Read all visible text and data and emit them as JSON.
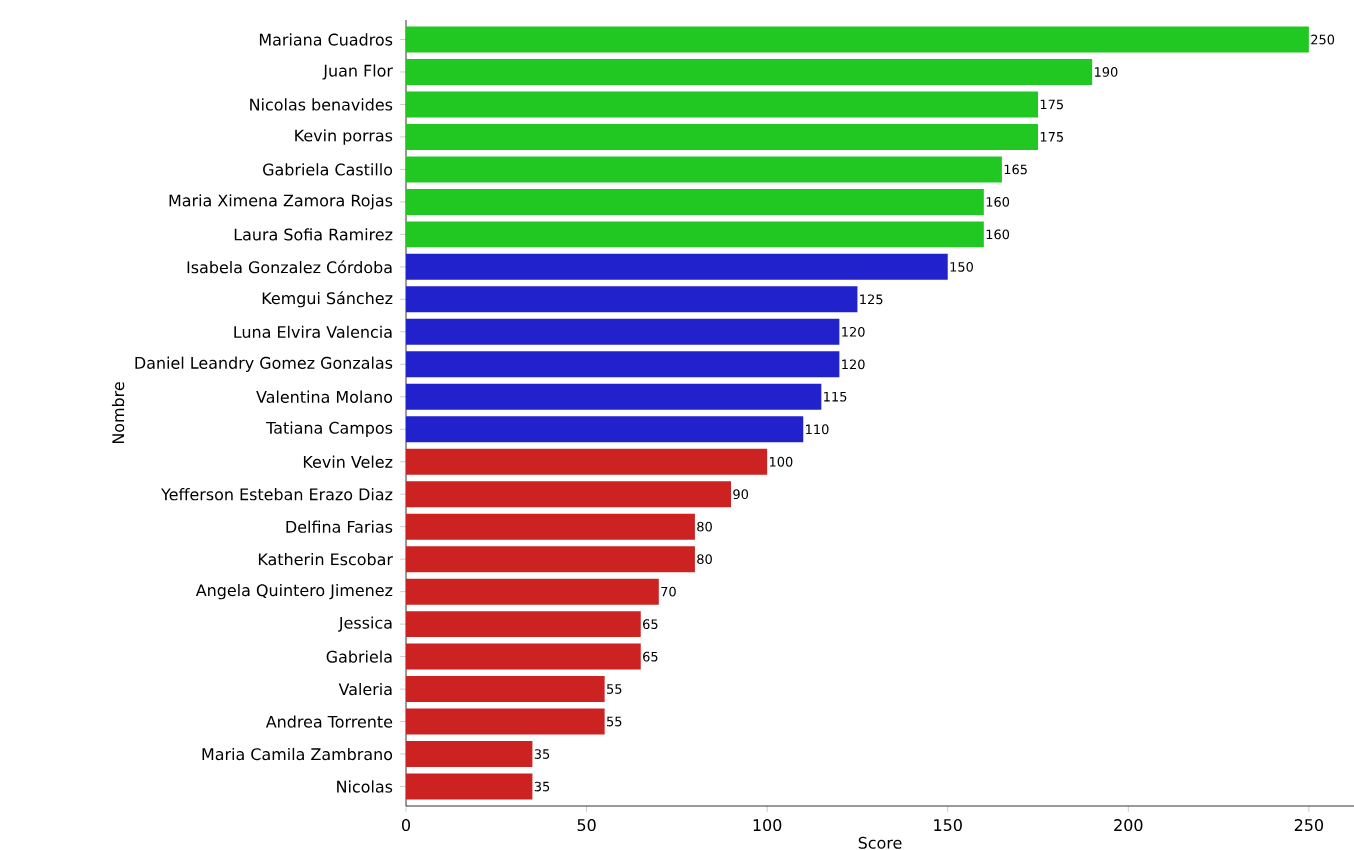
{
  "chart_data": {
    "type": "bar",
    "orientation": "horizontal",
    "xlabel": "Score",
    "ylabel": "Nombre",
    "categories": [
      "Mariana Cuadros",
      "Juan Flor",
      "Nicolas benavides",
      "Kevin porras",
      "Gabriela Castillo",
      "Maria Ximena Zamora Rojas",
      "Laura Sofia Ramirez",
      "Isabela Gonzalez Córdoba",
      "Kemgui Sánchez",
      "Luna Elvira Valencia",
      "Daniel Leandry Gomez Gonzalas",
      "Valentina Molano",
      "Tatiana Campos",
      "Kevin Velez",
      "Yefferson Esteban Erazo Diaz",
      "Delfina Farias",
      "Katherin Escobar",
      "Angela Quintero Jimenez",
      "Jessica",
      "Gabriela",
      "Valeria",
      "Andrea Torrente",
      "Maria Camila Zambrano",
      "Nicolas"
    ],
    "values": [
      250,
      190,
      175,
      175,
      165,
      160,
      160,
      150,
      125,
      120,
      120,
      115,
      110,
      100,
      90,
      80,
      80,
      70,
      65,
      65,
      55,
      55,
      35,
      35
    ],
    "colors": [
      "#22c822",
      "#22c822",
      "#22c822",
      "#22c822",
      "#22c822",
      "#22c822",
      "#22c822",
      "#2222cc",
      "#2222cc",
      "#2222cc",
      "#2222cc",
      "#2222cc",
      "#2222cc",
      "#cc2222",
      "#cc2222",
      "#cc2222",
      "#cc2222",
      "#cc2222",
      "#cc2222",
      "#cc2222",
      "#cc2222",
      "#cc2222",
      "#cc2222",
      "#cc2222"
    ],
    "xlim": [
      0,
      262.5
    ],
    "xticks": [
      0,
      50,
      100,
      150,
      200,
      250
    ],
    "data_labels": true
  }
}
